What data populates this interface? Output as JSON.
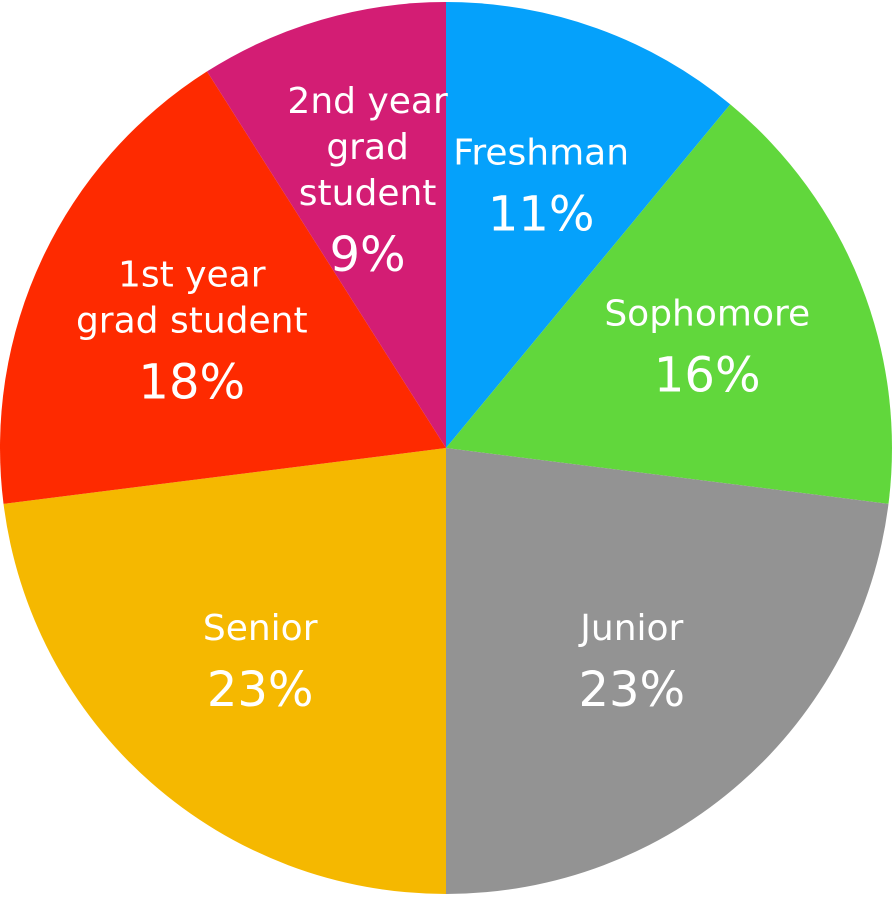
{
  "chart_data": {
    "type": "pie",
    "title": "",
    "start_angle": "12 o'clock",
    "direction": "clockwise",
    "slices": [
      {
        "label": [
          "Freshman"
        ],
        "percent_label": "11%",
        "value": 11,
        "color": "#05a1fb"
      },
      {
        "label": [
          "Sophomore"
        ],
        "percent_label": "16%",
        "value": 16,
        "color": "#61d73c"
      },
      {
        "label": [
          "Junior"
        ],
        "percent_label": "23%",
        "value": 23,
        "color": "#939393"
      },
      {
        "label": [
          "Senior"
        ],
        "percent_label": "23%",
        "value": 23,
        "color": "#f5b800"
      },
      {
        "label": [
          "1st year",
          "grad student"
        ],
        "percent_label": "18%",
        "value": 18,
        "color": "#fe2a00"
      },
      {
        "label": [
          "2nd year",
          "grad",
          "student"
        ],
        "percent_label": "9%",
        "value": 9,
        "color": "#d31d74"
      }
    ]
  }
}
